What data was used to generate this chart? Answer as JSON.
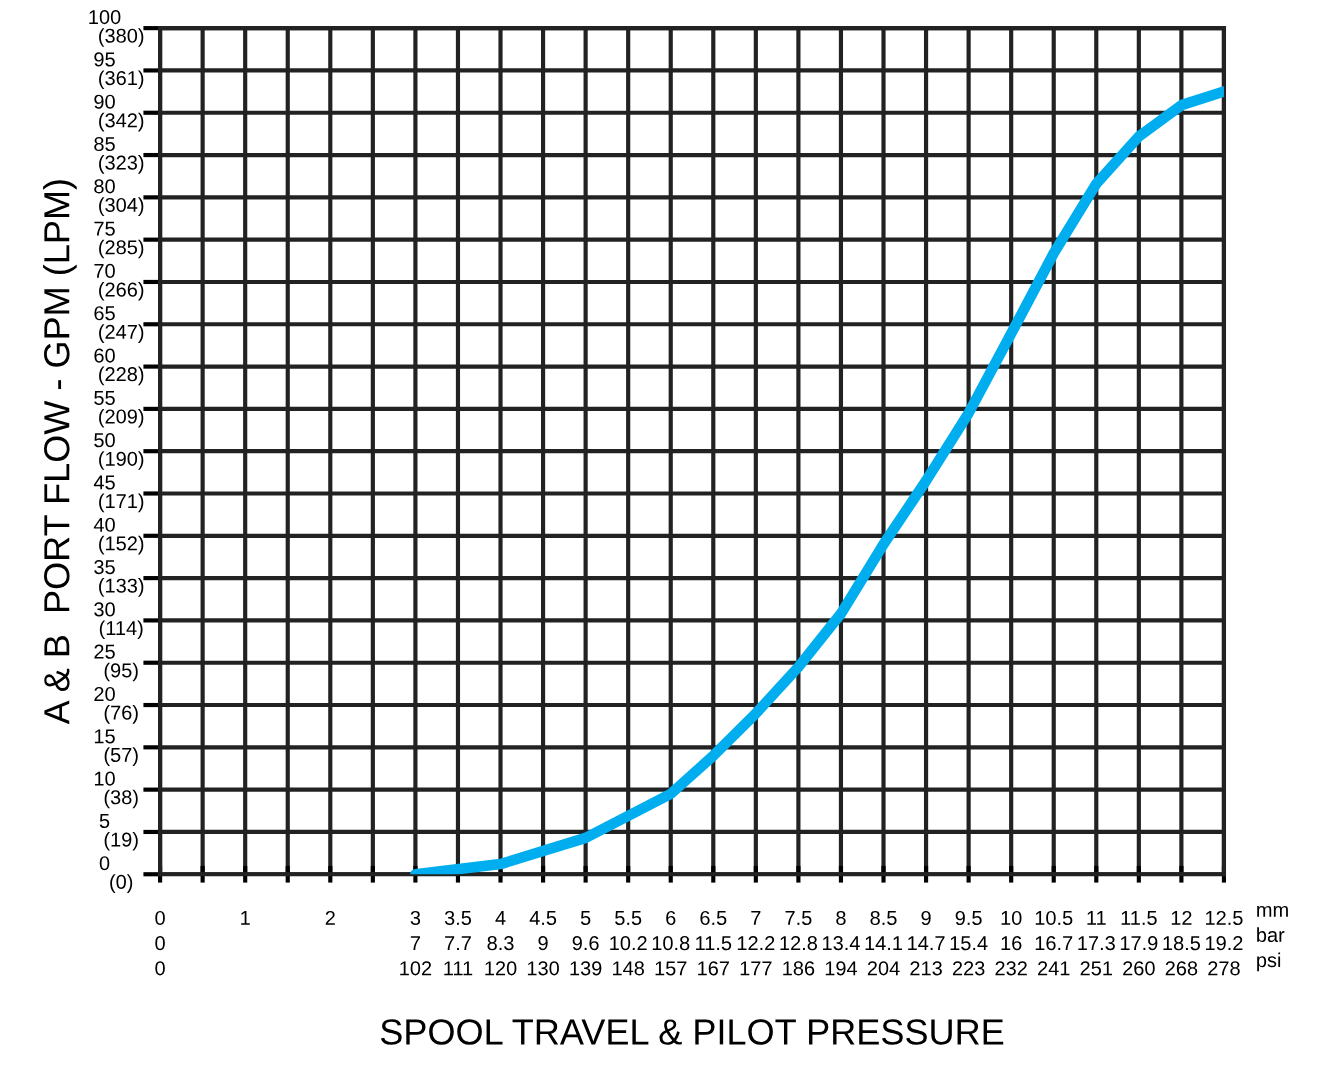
{
  "chart_data": {
    "type": "line",
    "xlabel": "SPOOL TRAVEL & PILOT PRESSURE",
    "ylabel": "A & B  PORT FLOW - GPM (LPM)",
    "annotations": [
      "mm\nbar\npsi"
    ],
    "series": [
      {
        "color": "#00aeef",
        "x": [
          3,
          4,
          5,
          6,
          6.5,
          7,
          7.5,
          8,
          8.5,
          9,
          9.5,
          10,
          10.5,
          11,
          11.5,
          12,
          12.5
        ],
        "values": [
          0,
          1.2,
          4.3,
          9.5,
          14,
          19,
          24.5,
          30.8,
          39,
          46.5,
          54.5,
          63.9,
          73.4,
          81.6,
          87.2,
          90.9,
          92.5
        ]
      }
    ],
    "xlim": [
      0,
      12.5
    ],
    "xticks": [
      {
        "value": 0,
        "label": "0\n0\n0"
      },
      {
        "value": 0.5,
        "label": null
      },
      {
        "value": 1,
        "label": "1"
      },
      {
        "value": 1.5,
        "label": null
      },
      {
        "value": 2,
        "label": "2"
      },
      {
        "value": 2.5,
        "label": null
      },
      {
        "value": 3,
        "label": "3\n7\n102"
      },
      {
        "value": 3.5,
        "label": "3.5\n7.7\n111"
      },
      {
        "value": 4,
        "label": "4\n8.3\n120"
      },
      {
        "value": 4.5,
        "label": "4.5\n9\n130"
      },
      {
        "value": 5,
        "label": "5\n9.6\n139"
      },
      {
        "value": 5.5,
        "label": "5.5\n10.2\n148"
      },
      {
        "value": 6,
        "label": "6\n10.8\n157"
      },
      {
        "value": 6.5,
        "label": "6.5\n11.5\n167"
      },
      {
        "value": 7,
        "label": "7\n12.2\n177"
      },
      {
        "value": 7.5,
        "label": "7.5\n12.8\n186"
      },
      {
        "value": 8,
        "label": "8\n13.4\n194"
      },
      {
        "value": 8.5,
        "label": "8.5\n14.1\n204"
      },
      {
        "value": 9,
        "label": "9\n14.7\n213"
      },
      {
        "value": 9.5,
        "label": "9.5\n15.4\n223"
      },
      {
        "value": 10,
        "label": "10\n16\n232"
      },
      {
        "value": 10.5,
        "label": "10.5\n16.7\n241"
      },
      {
        "value": 11,
        "label": "11\n17.3\n251"
      },
      {
        "value": 11.5,
        "label": "11.5\n17.9\n260"
      },
      {
        "value": 12,
        "label": "12\n18.5\n268"
      },
      {
        "value": 12.5,
        "label": "12.5\n19.2\n278"
      }
    ],
    "ylim": [
      0,
      100
    ],
    "yticks": [
      0,
      5,
      10,
      15,
      20,
      25,
      30,
      35,
      40,
      45,
      50,
      55,
      60,
      65,
      70,
      75,
      80,
      85,
      90,
      95,
      100
    ],
    "y2lim": [
      0,
      380
    ],
    "y2ticks": [
      {
        "value": 0,
        "label": "(0)"
      },
      {
        "value": 19,
        "label": "(19)"
      },
      {
        "value": 38,
        "label": "(38)"
      },
      {
        "value": 57,
        "label": "(57)"
      },
      {
        "value": 76,
        "label": "(76)"
      },
      {
        "value": 95,
        "label": "(95)"
      },
      {
        "value": 114,
        "label": "(114)"
      },
      {
        "value": 133,
        "label": "(133)"
      },
      {
        "value": 152,
        "label": "(152)"
      },
      {
        "value": 171,
        "label": "(171)"
      },
      {
        "value": 190,
        "label": "(190)"
      },
      {
        "value": 209,
        "label": "(209)"
      },
      {
        "value": 228,
        "label": "(228)"
      },
      {
        "value": 247,
        "label": "(247)"
      },
      {
        "value": 266,
        "label": "(266)"
      },
      {
        "value": 285,
        "label": "(285)"
      },
      {
        "value": 304,
        "label": "(304)"
      },
      {
        "value": 323,
        "label": "(323)"
      },
      {
        "value": 342,
        "label": "(342)"
      },
      {
        "value": 361,
        "label": "(361)"
      },
      {
        "value": 380,
        "label": "(380)"
      }
    ],
    "grid": true,
    "line_style": "solid",
    "marker": "none"
  }
}
